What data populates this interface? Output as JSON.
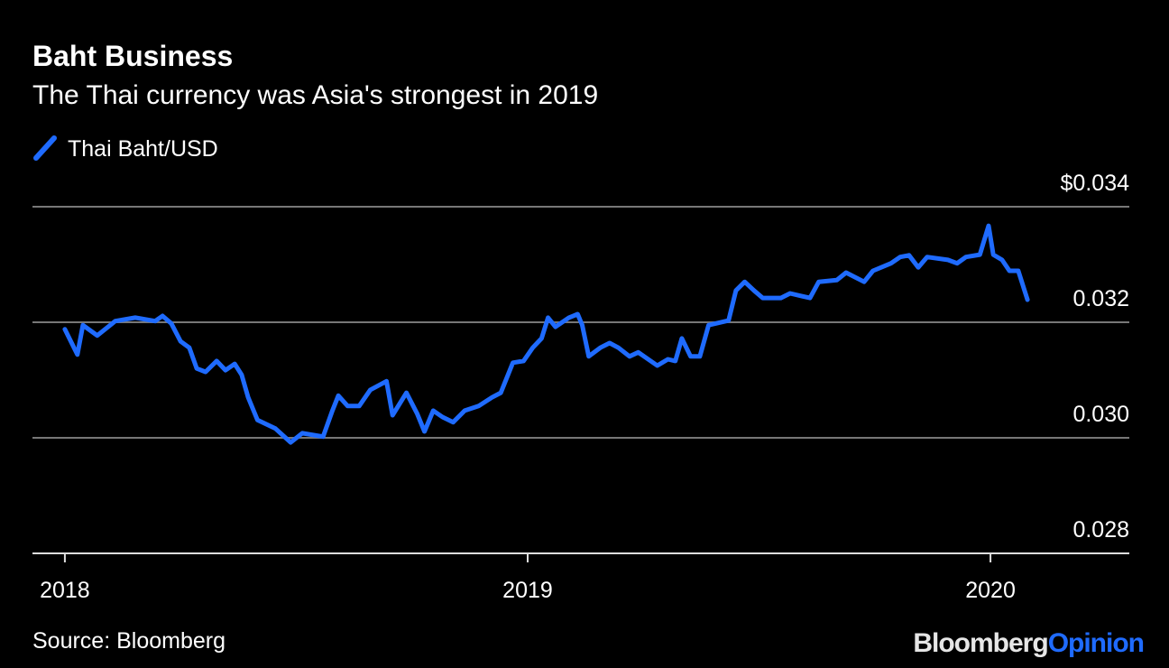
{
  "chart_data": {
    "type": "line",
    "title": "Baht Business",
    "subtitle": "The Thai currency was Asia's strongest in 2019",
    "source": "Source: Bloomberg",
    "brand": {
      "name": "Bloomberg",
      "section": "Opinion"
    },
    "xlim": [
      2017.93,
      2020.3
    ],
    "xticks": [
      2018,
      2019,
      2020
    ],
    "ylim": [
      0.028,
      0.034
    ],
    "yticks": [
      {
        "value": 0.028,
        "label": "0.028"
      },
      {
        "value": 0.03,
        "label": "0.030"
      },
      {
        "value": 0.032,
        "label": "0.032"
      },
      {
        "value": 0.034,
        "label": "$0.034"
      }
    ],
    "grid": true,
    "legend": "top-left",
    "x": [
      2018.0,
      2018.027,
      2018.039,
      2018.07,
      2018.109,
      2018.152,
      2018.195,
      2018.211,
      2018.23,
      2018.25,
      2018.269,
      2018.285,
      2018.304,
      2018.328,
      2018.347,
      2018.367,
      2018.382,
      2018.396,
      2018.416,
      2018.455,
      2018.488,
      2018.513,
      2018.558,
      2018.578,
      2018.591,
      2018.611,
      2018.636,
      2018.66,
      2018.695,
      2018.708,
      2018.738,
      2018.761,
      2018.777,
      2018.796,
      2018.816,
      2018.839,
      2018.864,
      2018.894,
      2018.923,
      2018.942,
      2018.968,
      2018.991,
      2019.011,
      2019.03,
      2019.044,
      2019.06,
      2019.089,
      2019.108,
      2019.118,
      2019.132,
      2019.157,
      2019.177,
      2019.196,
      2019.22,
      2019.239,
      2019.28,
      2019.303,
      2019.319,
      2019.333,
      2019.352,
      2019.372,
      2019.391,
      2019.434,
      2019.45,
      2019.469,
      2019.489,
      2019.508,
      2019.547,
      2019.567,
      2019.61,
      2019.629,
      2019.668,
      2019.688,
      2019.727,
      2019.746,
      2019.785,
      2019.805,
      2019.824,
      2019.844,
      2019.863,
      2019.908,
      2019.928,
      2019.947,
      2019.977,
      2019.996,
      2020.006,
      2020.025,
      2020.041,
      2020.06,
      2020.08
    ],
    "series": [
      {
        "name": "Thai Baht/USD",
        "color": "#1f6bff",
        "values": [
          0.03188,
          0.03144,
          0.03195,
          0.03177,
          0.03202,
          0.03208,
          0.03202,
          0.03211,
          0.03198,
          0.03167,
          0.03156,
          0.0312,
          0.03114,
          0.03133,
          0.03117,
          0.03128,
          0.03109,
          0.0307,
          0.03031,
          0.03016,
          0.02992,
          0.03008,
          0.03002,
          0.03047,
          0.03073,
          0.03055,
          0.03055,
          0.03083,
          0.03098,
          0.03039,
          0.03078,
          0.03042,
          0.03011,
          0.03047,
          0.03036,
          0.03027,
          0.03047,
          0.03055,
          0.0307,
          0.03078,
          0.0313,
          0.03133,
          0.03156,
          0.03172,
          0.03208,
          0.03192,
          0.03208,
          0.03214,
          0.03195,
          0.03141,
          0.03156,
          0.03164,
          0.03156,
          0.03141,
          0.03148,
          0.03125,
          0.03136,
          0.03133,
          0.03172,
          0.03141,
          0.03141,
          0.03195,
          0.03203,
          0.03255,
          0.0327,
          0.03255,
          0.03242,
          0.03242,
          0.0325,
          0.03242,
          0.0327,
          0.03273,
          0.03286,
          0.0327,
          0.03289,
          0.03302,
          0.03313,
          0.03316,
          0.03295,
          0.03313,
          0.03308,
          0.03302,
          0.03313,
          0.03317,
          0.03367,
          0.03317,
          0.03308,
          0.03289,
          0.03289,
          0.03239
        ]
      }
    ]
  }
}
